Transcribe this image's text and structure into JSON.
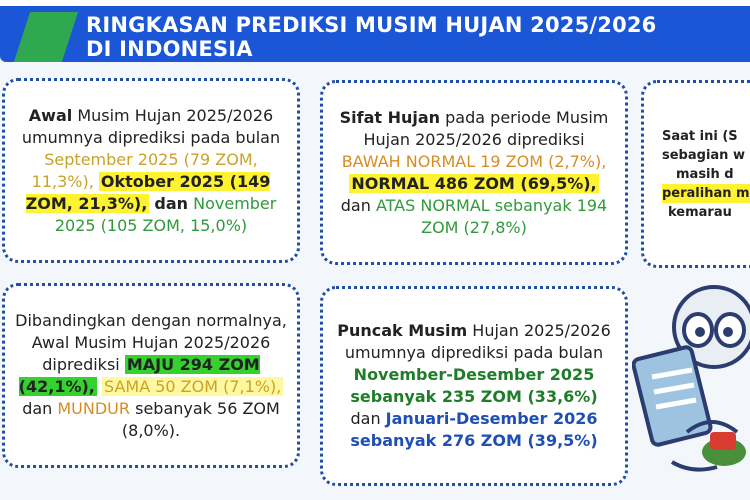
{
  "header": {
    "title_line1": "RINGKASAN PREDIKSI MUSIM HUJAN 2025/2026",
    "title_line2": "DI INDONESIA"
  },
  "card1": {
    "t1": "Awal",
    "t2": " Musim Hujan 2025/2026 umumnya diprediksi pada bulan ",
    "t3": "September 2025 (79 ZOM, 11,3%),",
    "t4": "Oktober 2025 (149 ZOM, 21,3%),",
    "t5": "dan",
    "t6": " November 2025 (105 ZOM, 15,0%)"
  },
  "card2": {
    "t1": "Sifat Hujan",
    "t2": " pada periode Musim Hujan 2025/2026 diprediksi ",
    "t3": "BAWAH NORMAL 19 ZOM (2,7%),",
    "t4": "NORMAL 486 ZOM (69,5%),",
    "t5": " dan ",
    "t6": "ATAS NORMAL sebanyak 194 ZOM (27,8%)"
  },
  "card3": {
    "l1": "Saat ini (S",
    "l2": "sebagian w",
    "l3": "masih d",
    "l4": "peralihan m",
    "l5": "kemarau"
  },
  "card4": {
    "t1": "Dibandingkan dengan normalnya, Awal Musim Hujan 2025/2026 diprediksi ",
    "t2": "MAJU 294 ZOM (42,1%),",
    "t3": "SAMA 50 ZOM (7,1%),",
    "t4": " dan ",
    "t5": "MUNDUR",
    "t6": " sebanyak 56 ZOM (8,0%)."
  },
  "card5": {
    "t1": "Puncak Musim",
    "t2": " Hujan 2025/2026 umumnya diprediksi pada bulan ",
    "t3": "November-Desember 2025 sebanyak 235 ZOM (33,6%)",
    "t4": " dan ",
    "t5": "Januari-Desember 2026 sebanyak  276 ZOM (39,5%)"
  },
  "colors": {
    "header_blue": "#1a56d6",
    "accent_green": "#2fa84f",
    "card_border": "#1f4fa8",
    "highlight_yellow": "#fff230",
    "highlight_green": "#35d12f"
  },
  "icons": {
    "mascot": "mascot-character-icon"
  }
}
